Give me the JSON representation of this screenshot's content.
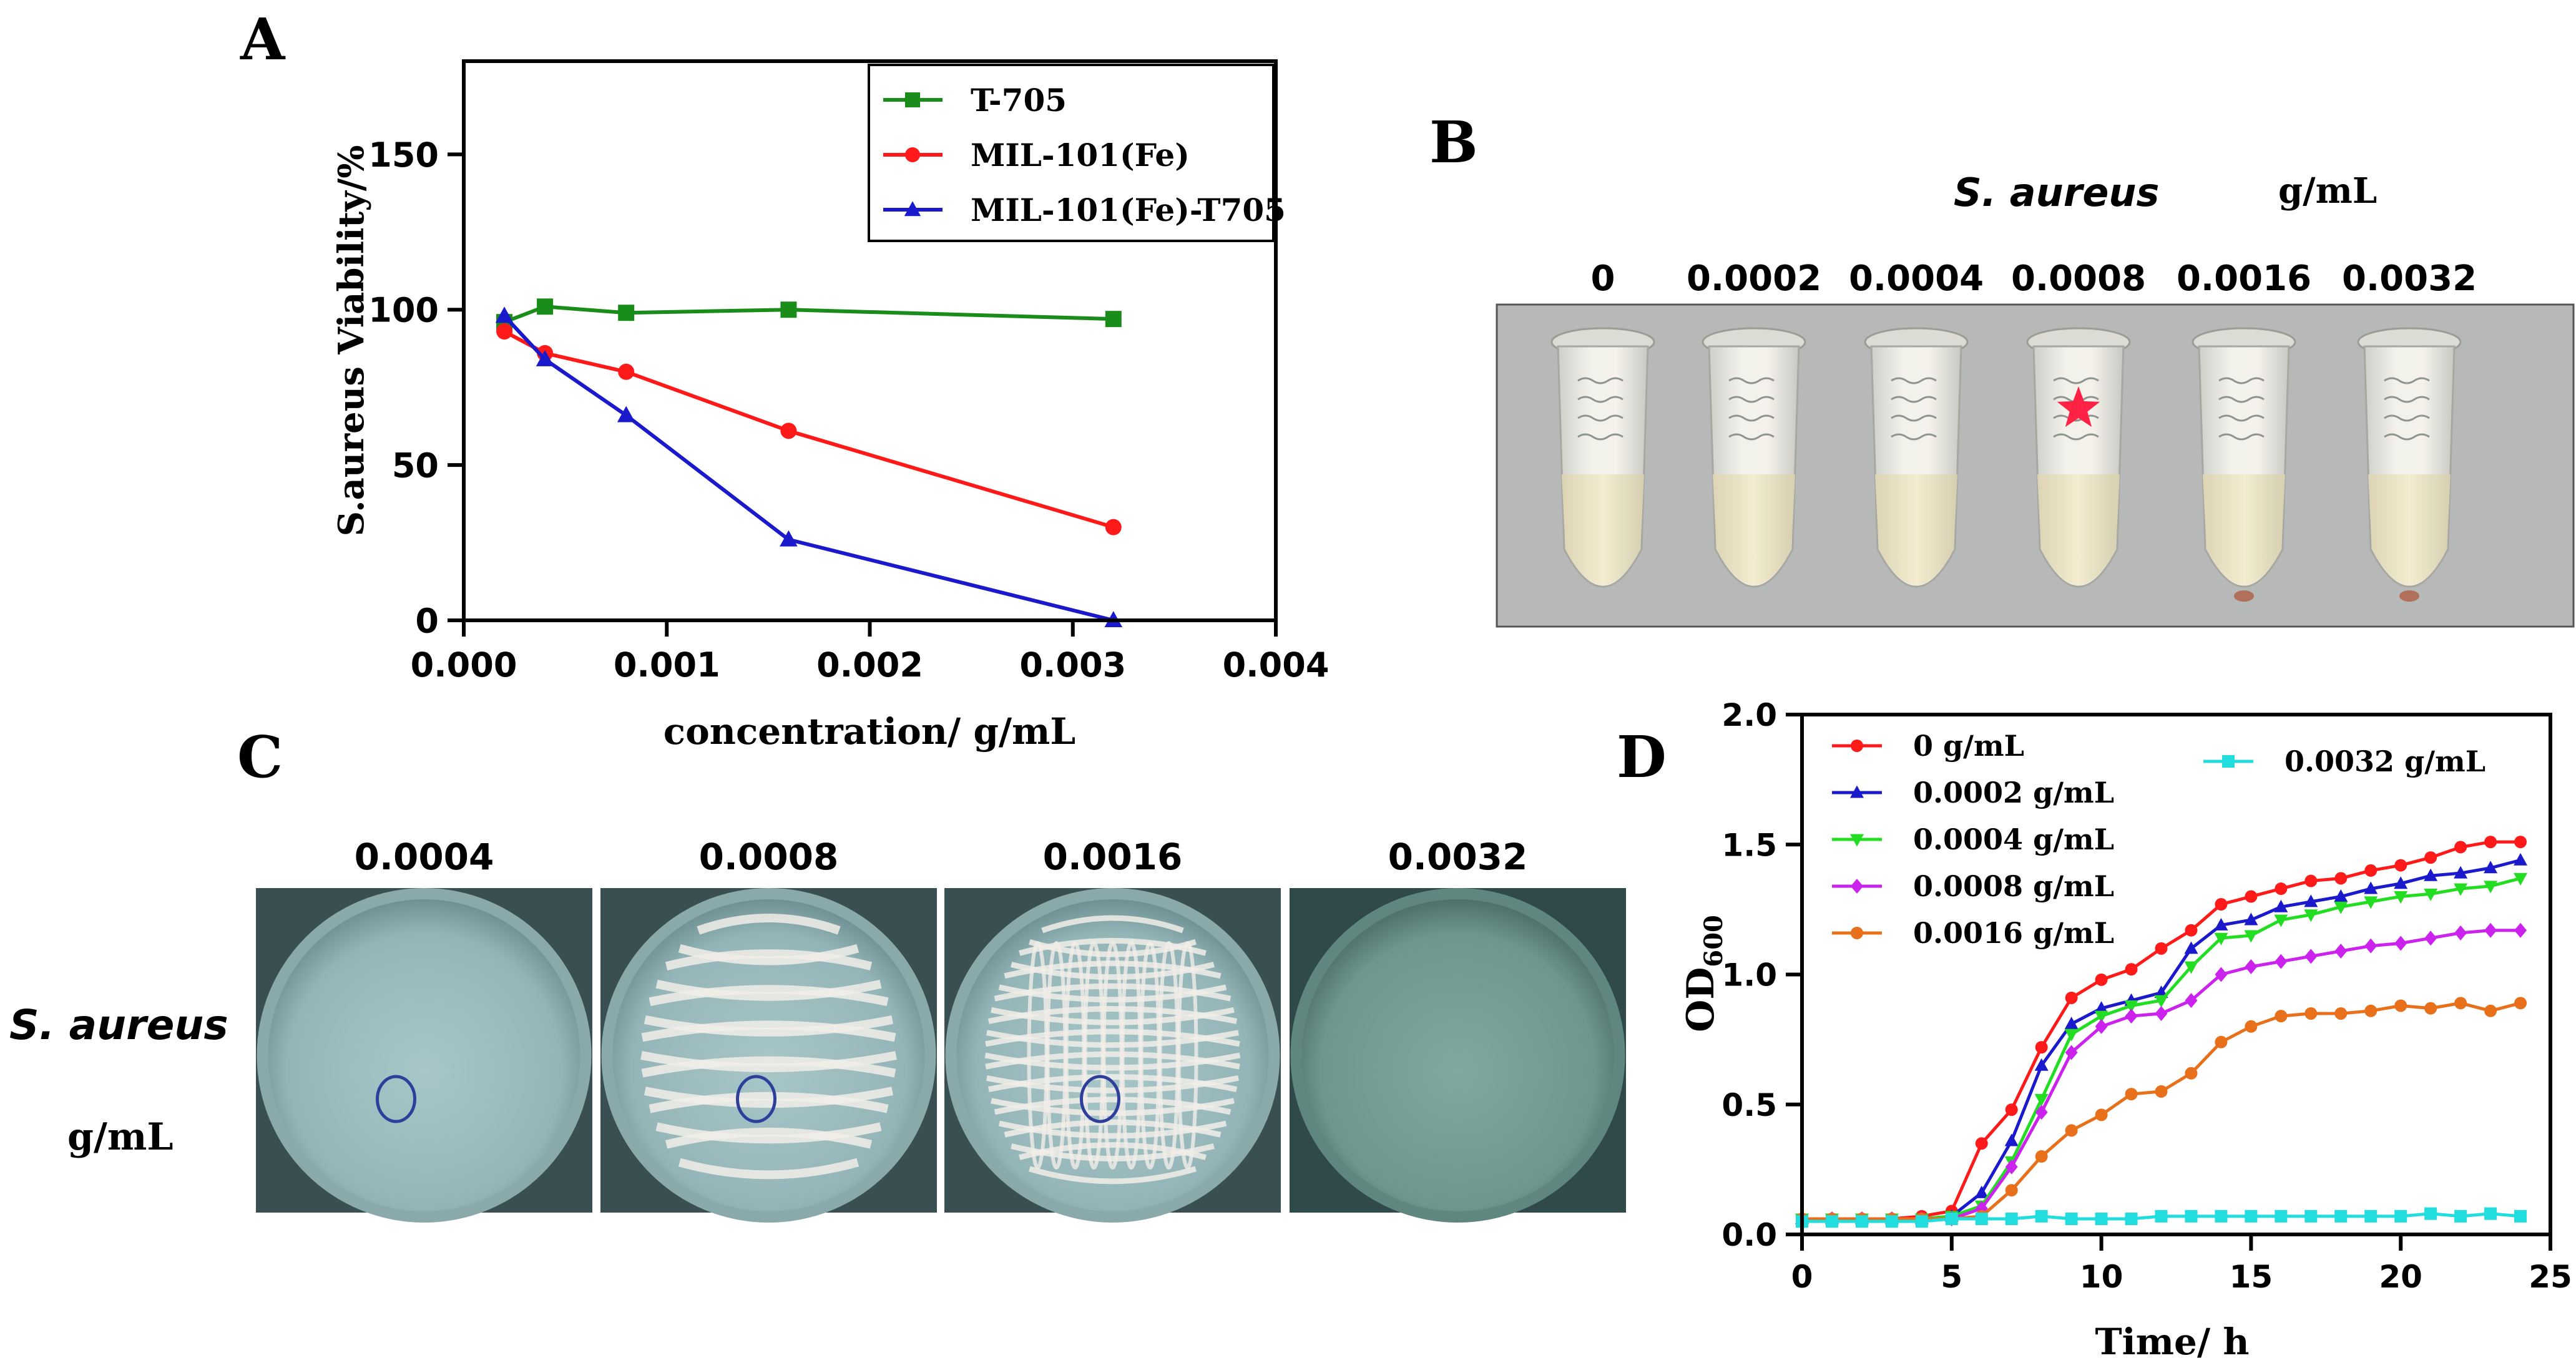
{
  "panels": {
    "a": {
      "letter": "A"
    },
    "b": {
      "letter": "B",
      "organism": "S. aureus",
      "unit": "g/mL",
      "tube_labels": [
        "0",
        "0.0002",
        "0.0004",
        "0.0008",
        "0.0016",
        "0.0032"
      ],
      "marker_tube_index": 3,
      "colors": {
        "marker": "#ff2244",
        "liquid": "#efe6c8",
        "background": "#b7b8b8"
      }
    },
    "c": {
      "letter": "C",
      "organism": "S. aureus",
      "unit": "g/mL",
      "plate_labels": [
        "0.0004",
        "0.0008",
        "0.0016",
        "0.0032"
      ],
      "colors": {
        "plate": "#8fb3b5",
        "colony": "#f1ede8"
      }
    },
    "d": {
      "letter": "D"
    }
  },
  "chart_data": [
    {
      "type": "line",
      "ylabel": "S.aureus Viability/%",
      "xlabel": "concentration/ g/mL",
      "xlim": [
        0.0,
        0.004
      ],
      "ylim": [
        0,
        180
      ],
      "xticks": [
        "0.000",
        "0.001",
        "0.002",
        "0.003",
        "0.004"
      ],
      "yticks": [
        "0",
        "50",
        "100",
        "150"
      ],
      "grid": false,
      "legend": "top-right",
      "series": [
        {
          "name": "T-705",
          "color": "#1a8c1a",
          "marker": "square",
          "x": [
            0.0002,
            0.0004,
            0.0008,
            0.0016,
            0.0032
          ],
          "y": [
            96,
            101,
            99,
            100,
            97
          ]
        },
        {
          "name": "MIL-101(Fe)",
          "color": "#ff1a1a",
          "marker": "circle",
          "x": [
            0.0002,
            0.0004,
            0.0008,
            0.0016,
            0.0032
          ],
          "y": [
            93,
            86,
            80,
            61,
            30
          ]
        },
        {
          "name": "MIL-101(Fe)-T705",
          "color": "#1a1acc",
          "marker": "triangle",
          "x": [
            0.0002,
            0.0004,
            0.0008,
            0.0016,
            0.0032
          ],
          "y": [
            98,
            84,
            66,
            26,
            0
          ]
        }
      ]
    },
    {
      "type": "line",
      "ylabel_main": "OD",
      "ylabel_sub": "600",
      "xlabel": "Time/ h",
      "xlim": [
        0,
        25
      ],
      "ylim": [
        0,
        2.0
      ],
      "xticks": [
        "0",
        "5",
        "10",
        "15",
        "20",
        "25"
      ],
      "yticks": [
        "0.0",
        "0.5",
        "1.0",
        "1.5",
        "2.0"
      ],
      "grid": false,
      "legend": "top-left",
      "series": [
        {
          "name": "0 g/mL",
          "color": "#ff1a1a",
          "marker": "circle",
          "x": [
            0,
            1,
            2,
            3,
            4,
            5,
            6,
            7,
            8,
            9,
            10,
            11,
            12,
            13,
            14,
            15,
            16,
            17,
            18,
            19,
            20,
            21,
            22,
            23,
            24
          ],
          "y": [
            0.06,
            0.06,
            0.06,
            0.06,
            0.07,
            0.09,
            0.35,
            0.48,
            0.72,
            0.91,
            0.98,
            1.02,
            1.1,
            1.17,
            1.27,
            1.3,
            1.33,
            1.36,
            1.37,
            1.4,
            1.42,
            1.45,
            1.49,
            1.51,
            1.51
          ]
        },
        {
          "name": "0.0002 g/mL",
          "color": "#1a1acc",
          "marker": "triangle",
          "x": [
            0,
            1,
            2,
            3,
            4,
            5,
            6,
            7,
            8,
            9,
            10,
            11,
            12,
            13,
            14,
            15,
            16,
            17,
            18,
            19,
            20,
            21,
            22,
            23,
            24
          ],
          "y": [
            0.06,
            0.06,
            0.06,
            0.06,
            0.06,
            0.07,
            0.16,
            0.36,
            0.65,
            0.81,
            0.87,
            0.9,
            0.93,
            1.1,
            1.19,
            1.21,
            1.26,
            1.28,
            1.3,
            1.33,
            1.35,
            1.38,
            1.39,
            1.41,
            1.44
          ]
        },
        {
          "name": "0.0004 g/mL",
          "color": "#22dd22",
          "marker": "triangle-down",
          "x": [
            0,
            1,
            2,
            3,
            4,
            5,
            6,
            7,
            8,
            9,
            10,
            11,
            12,
            13,
            14,
            15,
            16,
            17,
            18,
            19,
            20,
            21,
            22,
            23,
            24
          ],
          "y": [
            0.06,
            0.06,
            0.06,
            0.06,
            0.06,
            0.07,
            0.11,
            0.28,
            0.52,
            0.77,
            0.84,
            0.88,
            0.9,
            1.03,
            1.14,
            1.15,
            1.21,
            1.23,
            1.26,
            1.28,
            1.3,
            1.31,
            1.33,
            1.34,
            1.37
          ]
        },
        {
          "name": "0.0008 g/mL",
          "color": "#cc22ee",
          "marker": "diamond",
          "x": [
            0,
            1,
            2,
            3,
            4,
            5,
            6,
            7,
            8,
            9,
            10,
            11,
            12,
            13,
            14,
            15,
            16,
            17,
            18,
            19,
            20,
            21,
            22,
            23,
            24
          ],
          "y": [
            0.06,
            0.06,
            0.06,
            0.06,
            0.06,
            0.06,
            0.1,
            0.26,
            0.47,
            0.7,
            0.8,
            0.84,
            0.85,
            0.9,
            1.0,
            1.03,
            1.05,
            1.07,
            1.09,
            1.11,
            1.12,
            1.14,
            1.16,
            1.17,
            1.17
          ]
        },
        {
          "name": "0.0016 g/mL",
          "color": "#e8701a",
          "marker": "circle",
          "x": [
            0,
            1,
            2,
            3,
            4,
            5,
            6,
            7,
            8,
            9,
            10,
            11,
            12,
            13,
            14,
            15,
            16,
            17,
            18,
            19,
            20,
            21,
            22,
            23,
            24
          ],
          "y": [
            0.06,
            0.06,
            0.06,
            0.06,
            0.06,
            0.06,
            0.07,
            0.17,
            0.3,
            0.4,
            0.46,
            0.54,
            0.55,
            0.62,
            0.74,
            0.8,
            0.84,
            0.85,
            0.85,
            0.86,
            0.88,
            0.87,
            0.89,
            0.86,
            0.89
          ]
        },
        {
          "name": "0.0032 g/mL",
          "color": "#22dddd",
          "marker": "square",
          "x": [
            0,
            1,
            2,
            3,
            4,
            5,
            6,
            7,
            8,
            9,
            10,
            11,
            12,
            13,
            14,
            15,
            16,
            17,
            18,
            19,
            20,
            21,
            22,
            23,
            24
          ],
          "y": [
            0.05,
            0.05,
            0.05,
            0.05,
            0.05,
            0.06,
            0.06,
            0.06,
            0.07,
            0.06,
            0.06,
            0.06,
            0.07,
            0.07,
            0.07,
            0.07,
            0.07,
            0.07,
            0.07,
            0.07,
            0.07,
            0.08,
            0.07,
            0.08,
            0.07
          ]
        }
      ]
    }
  ]
}
